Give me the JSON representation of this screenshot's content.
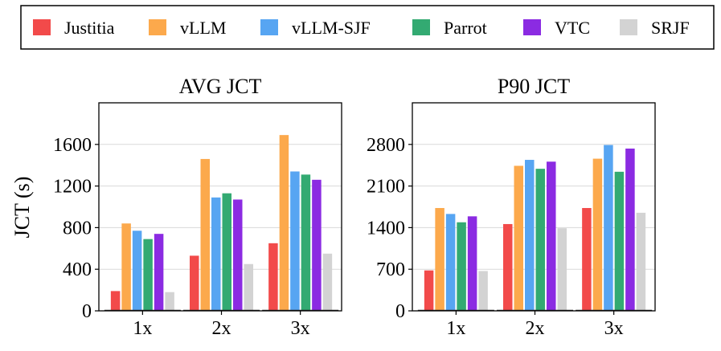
{
  "legend": {
    "entries": [
      {
        "label": "Justitia",
        "color": "#f24a4a"
      },
      {
        "label": "vLLM",
        "color": "#fca94c"
      },
      {
        "label": "vLLM-SJF",
        "color": "#57a5f2"
      },
      {
        "label": "Parrot",
        "color": "#33aa72"
      },
      {
        "label": "VTC",
        "color": "#8b2be2"
      },
      {
        "label": "SRJF",
        "color": "#d3d3d3"
      }
    ]
  },
  "chart_data": [
    {
      "type": "bar",
      "title": "AVG JCT",
      "xlabel": "",
      "ylabel": "JCT (s)",
      "ylim": [
        0,
        2000
      ],
      "yticks": [
        0,
        400,
        800,
        1200,
        1600
      ],
      "grid": true,
      "categories": [
        "1x",
        "2x",
        "3x"
      ],
      "series": [
        {
          "name": "Justitia",
          "values": [
            190,
            530,
            650
          ]
        },
        {
          "name": "vLLM",
          "values": [
            840,
            1460,
            1690
          ]
        },
        {
          "name": "vLLM-SJF",
          "values": [
            770,
            1090,
            1340
          ]
        },
        {
          "name": "Parrot",
          "values": [
            690,
            1130,
            1310
          ]
        },
        {
          "name": "VTC",
          "values": [
            740,
            1070,
            1260
          ]
        },
        {
          "name": "SRJF",
          "values": [
            180,
            450,
            550
          ]
        }
      ]
    },
    {
      "type": "bar",
      "title": "P90 JCT",
      "xlabel": "",
      "ylabel": "",
      "ylim": [
        0,
        3500
      ],
      "yticks": [
        0,
        700,
        1400,
        2100,
        2800
      ],
      "grid": true,
      "categories": [
        "1x",
        "2x",
        "3x"
      ],
      "series": [
        {
          "name": "Justitia",
          "values": [
            680,
            1460,
            1730
          ]
        },
        {
          "name": "vLLM",
          "values": [
            1730,
            2440,
            2560
          ]
        },
        {
          "name": "vLLM-SJF",
          "values": [
            1630,
            2540,
            2790
          ]
        },
        {
          "name": "Parrot",
          "values": [
            1490,
            2390,
            2340
          ]
        },
        {
          "name": "VTC",
          "values": [
            1590,
            2510,
            2730
          ]
        },
        {
          "name": "SRJF",
          "values": [
            670,
            1390,
            1650
          ]
        }
      ]
    }
  ]
}
